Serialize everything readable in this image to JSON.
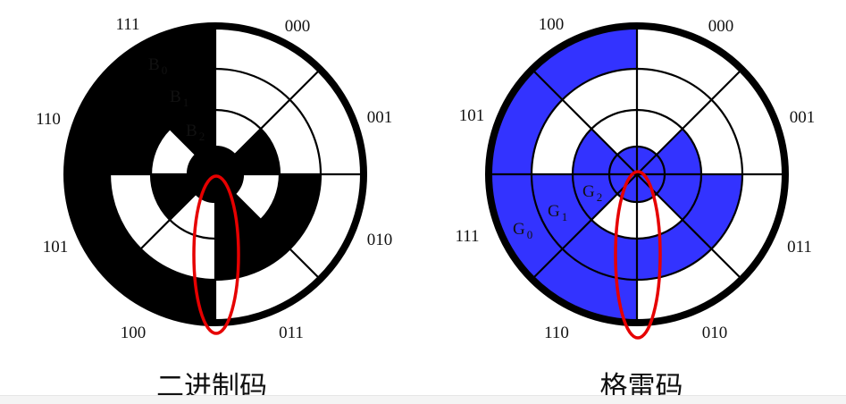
{
  "binary": {
    "caption": "二进制码",
    "sector_labels": [
      "000",
      "001",
      "010",
      "011",
      "100",
      "101",
      "110",
      "111"
    ],
    "ring_labels": [
      {
        "main": "B",
        "sub": "0"
      },
      {
        "main": "B",
        "sub": "1"
      },
      {
        "main": "B",
        "sub": "2"
      }
    ]
  },
  "gray": {
    "caption": "格雷码",
    "sector_labels": [
      "000",
      "001",
      "011",
      "010",
      "110",
      "111",
      "101",
      "100"
    ],
    "ring_labels": [
      {
        "main": "G",
        "sub": "0"
      },
      {
        "main": "G",
        "sub": "1"
      },
      {
        "main": "G",
        "sub": "2"
      }
    ]
  },
  "colors": {
    "binary_fill": "#000000",
    "gray_fill": "#3333ff",
    "highlight_ellipse": "#e60000",
    "stroke": "#000000"
  }
}
